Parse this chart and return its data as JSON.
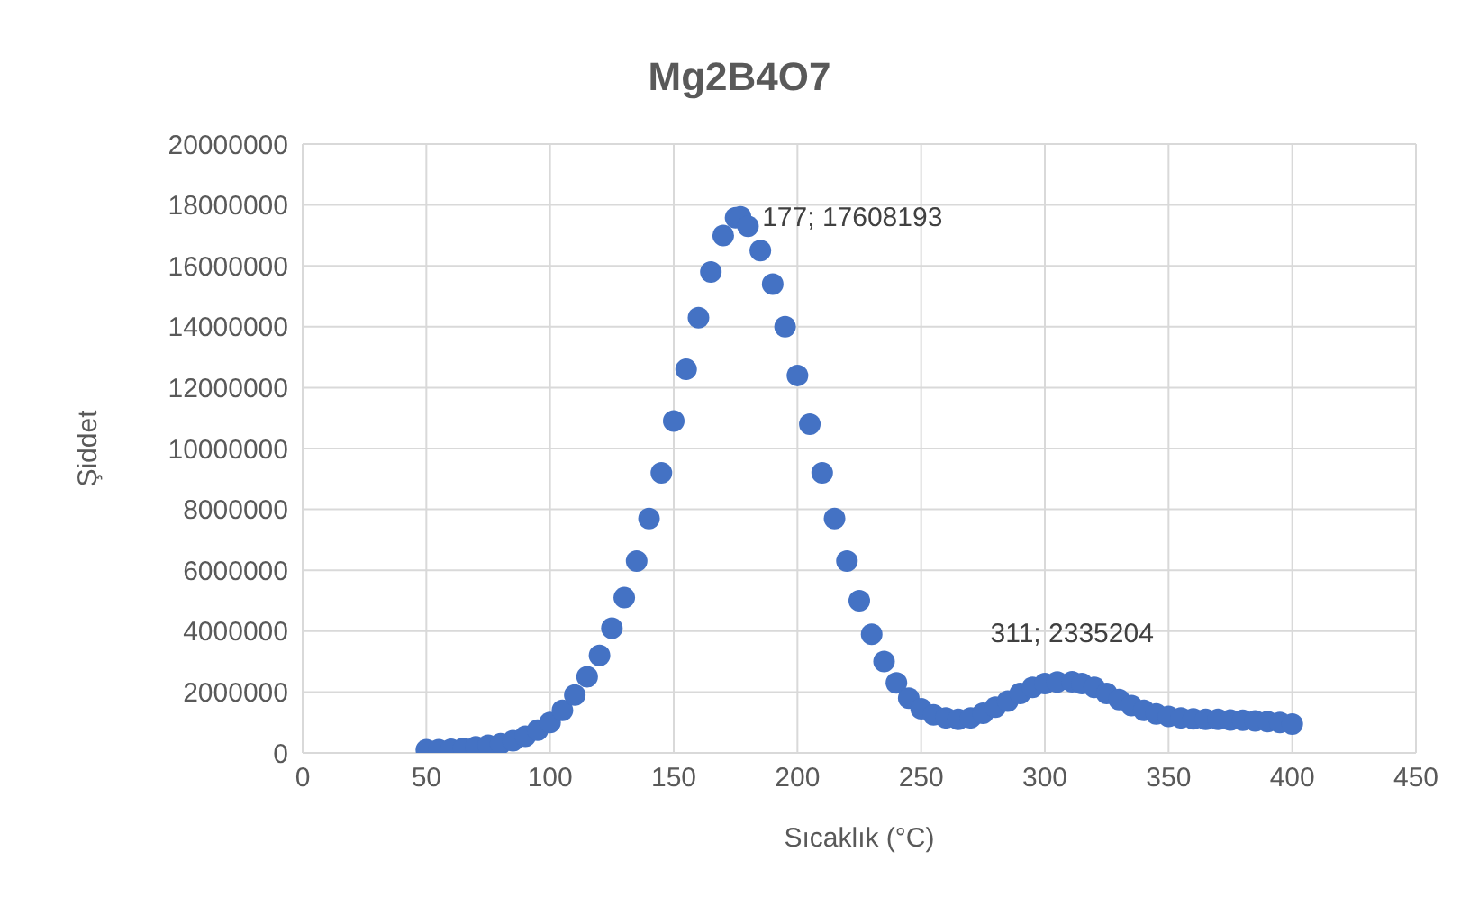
{
  "chart_data": {
    "type": "scatter",
    "title": "Mg2B4O7",
    "xlabel": "Sıcaklık (°C)",
    "ylabel": "Şiddet",
    "x": [
      50,
      55,
      60,
      65,
      70,
      75,
      80,
      85,
      90,
      95,
      100,
      105,
      110,
      115,
      120,
      125,
      130,
      135,
      140,
      145,
      150,
      155,
      160,
      165,
      170,
      175,
      177,
      180,
      185,
      190,
      195,
      200,
      205,
      210,
      215,
      220,
      225,
      230,
      235,
      240,
      245,
      250,
      255,
      260,
      265,
      270,
      275,
      280,
      285,
      290,
      295,
      300,
      305,
      311,
      315,
      320,
      325,
      330,
      335,
      340,
      345,
      350,
      355,
      360,
      365,
      370,
      375,
      380,
      385,
      390,
      395,
      400
    ],
    "series": [
      {
        "color": "#4472c4",
        "values": [
          100000,
          100000,
          120000,
          150000,
          200000,
          250000,
          300000,
          400000,
          550000,
          750000,
          1000000,
          1400000,
          1900000,
          2500000,
          3200000,
          4100000,
          5100000,
          6300000,
          7700000,
          9200000,
          10900000,
          12600000,
          14300000,
          15800000,
          17000000,
          17580000,
          17608193,
          17300000,
          16500000,
          15400000,
          14000000,
          12400000,
          10800000,
          9200000,
          7700000,
          6300000,
          5000000,
          3900000,
          3000000,
          2300000,
          1800000,
          1450000,
          1250000,
          1150000,
          1100000,
          1150000,
          1300000,
          1500000,
          1700000,
          1950000,
          2150000,
          2280000,
          2330000,
          2335204,
          2280000,
          2150000,
          1950000,
          1750000,
          1550000,
          1400000,
          1280000,
          1200000,
          1150000,
          1120000,
          1100000,
          1100000,
          1080000,
          1070000,
          1050000,
          1030000,
          1000000,
          950000
        ]
      }
    ],
    "annotations": [
      {
        "text": "177; 17608193",
        "x": 177,
        "y": 17608193
      },
      {
        "text": "311; 2335204",
        "x": 311,
        "y": 2335204
      }
    ],
    "xlim": [
      0,
      450
    ],
    "xticks": [
      0,
      50,
      100,
      150,
      200,
      250,
      300,
      350,
      400,
      450
    ],
    "ylim": [
      0,
      20000000
    ],
    "yticks": [
      0,
      2000000,
      4000000,
      6000000,
      8000000,
      10000000,
      12000000,
      14000000,
      16000000,
      18000000,
      20000000
    ],
    "grid": true,
    "marker": "circle"
  }
}
